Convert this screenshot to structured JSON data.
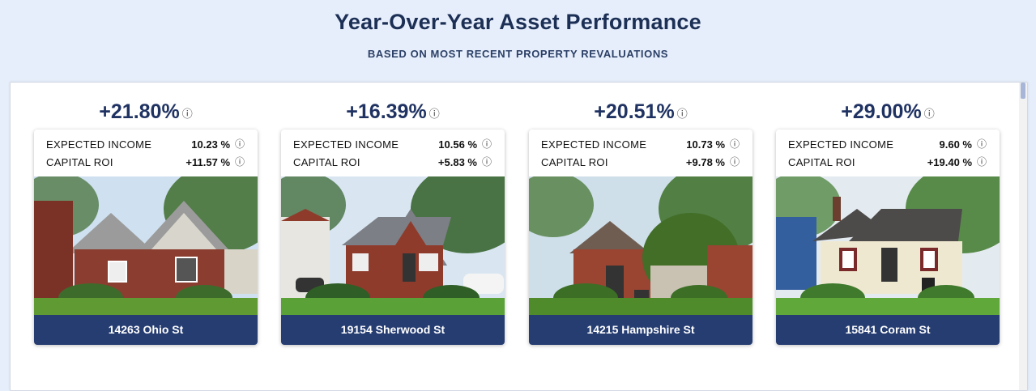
{
  "header": {
    "title": "Year-Over-Year Asset Performance",
    "subtitle": "BASED ON MOST RECENT PROPERTY REVALUATIONS"
  },
  "labels": {
    "expected_income": "EXPECTED INCOME",
    "capital_roi": "CAPITAL ROI"
  },
  "info_icon": "ⓘ",
  "properties": [
    {
      "performance": "+21.80%",
      "expected_income": "10.23 %",
      "capital_roi": "+11.57 %",
      "address": "14263 Ohio St",
      "photo": {
        "sky": "#cfe0f0",
        "house": "#8b3e30",
        "roof": "#9b9b9b",
        "trim": "#d8d6cc",
        "foliage": "#3d6b2c",
        "lawn": "#5f9a33"
      }
    },
    {
      "performance": "+16.39%",
      "expected_income": "10.56 %",
      "capital_roi": "+5.83 %",
      "address": "19154 Sherwood St",
      "photo": {
        "sky": "#d9e6f2",
        "house": "#8f3b2c",
        "roof": "#7c7f86",
        "trim": "#e8e6e0",
        "foliage": "#2f5e26",
        "lawn": "#5aa238"
      }
    },
    {
      "performance": "+20.51%",
      "expected_income": "10.73 %",
      "capital_roi": "+9.78 %",
      "address": "14215 Hampshire St",
      "photo": {
        "sky": "#cfdfe9",
        "house": "#9a4432",
        "roof": "#6f5d52",
        "trim": "#d9d3c6",
        "foliage": "#3c6e26",
        "lawn": "#4f8b2a"
      }
    },
    {
      "performance": "+29.00%",
      "expected_income": "9.60 %",
      "capital_roi": "+19.40 %",
      "address": "15841 Coram St",
      "photo": {
        "sky": "#e4ebf0",
        "house": "#efe8d0",
        "roof": "#4d4a4a",
        "trim": "#7a2a2a",
        "foliage": "#3f7a2d",
        "lawn": "#61a83a"
      }
    }
  ]
}
